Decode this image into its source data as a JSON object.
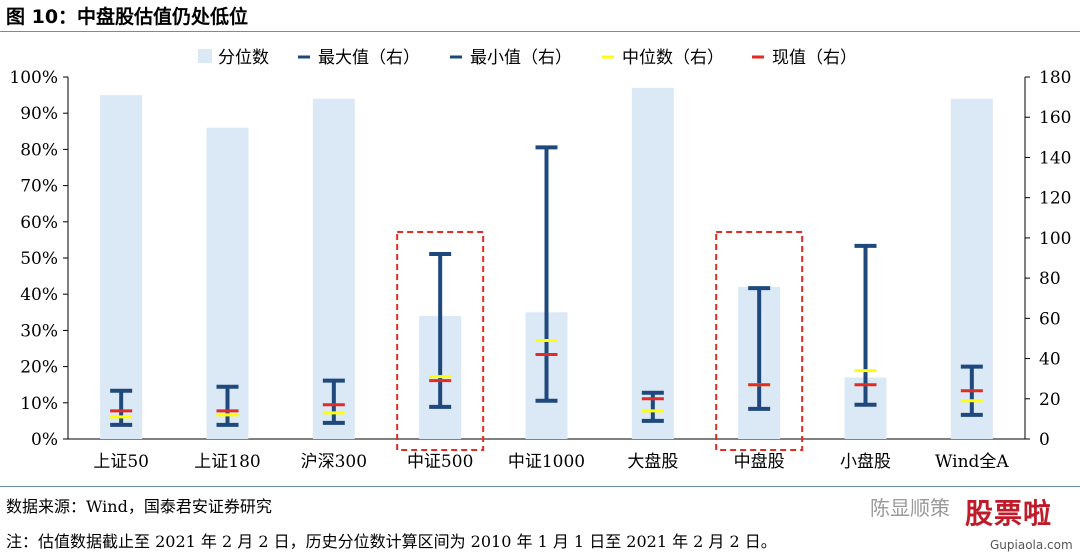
{
  "title": "图 10：中盘股估值仍处低位",
  "source": "数据来源：Wind，国泰君安证券研究",
  "note": "注：估值数据截止至 2021 年 2 月 2 日，历史分位数计算区间为 2010 年 1 月 1 日至 2021 年 2 月 2 日。",
  "watermark": {
    "author": "陈显顺策",
    "logo": "股票啦",
    "url": "Gupiaola.com"
  },
  "colors": {
    "bar": "#dbe8f5",
    "whisker": "#1f497d",
    "median": "#ffff00",
    "current": "#e32b23",
    "highlight": "#e32b23",
    "axis": "#000000"
  },
  "chart_data": {
    "type": "bar",
    "categories": [
      "上证50",
      "上证180",
      "沪深300",
      "中证500",
      "中证1000",
      "大盘股",
      "中盘股",
      "小盘股",
      "Wind全A"
    ],
    "legend": [
      "分位数",
      "最大值（右）",
      "最小值（右）",
      "中位数（右）",
      "现值（右）"
    ],
    "legend_position": "top",
    "left_axis": {
      "ticks": [
        "0%",
        "10%",
        "20%",
        "30%",
        "40%",
        "50%",
        "60%",
        "70%",
        "80%",
        "90%",
        "100%"
      ],
      "range": [
        0,
        100
      ]
    },
    "right_axis": {
      "ticks": [
        "0",
        "20",
        "40",
        "60",
        "80",
        "100",
        "120",
        "140",
        "160",
        "180"
      ],
      "range": [
        0,
        180
      ]
    },
    "series": [
      {
        "name": "分位数",
        "axis": "left",
        "values": [
          95,
          86,
          94,
          34,
          35,
          97,
          42,
          17,
          94
        ]
      },
      {
        "name": "最大值（右）",
        "axis": "right",
        "values": [
          24,
          26,
          29,
          92,
          145,
          23,
          75,
          96,
          36
        ]
      },
      {
        "name": "最小值（右）",
        "axis": "right",
        "values": [
          7,
          7,
          8,
          16,
          19,
          9,
          15,
          17,
          12
        ]
      },
      {
        "name": "中位数（右）",
        "axis": "right",
        "values": [
          11,
          12,
          13,
          31,
          49,
          14,
          27,
          34,
          19
        ]
      },
      {
        "name": "现值（右）",
        "axis": "right",
        "values": [
          14,
          14,
          17,
          29,
          42,
          20,
          27,
          27,
          24
        ]
      }
    ],
    "highlighted_categories": [
      "中证500",
      "中盘股"
    ],
    "grid": false
  }
}
